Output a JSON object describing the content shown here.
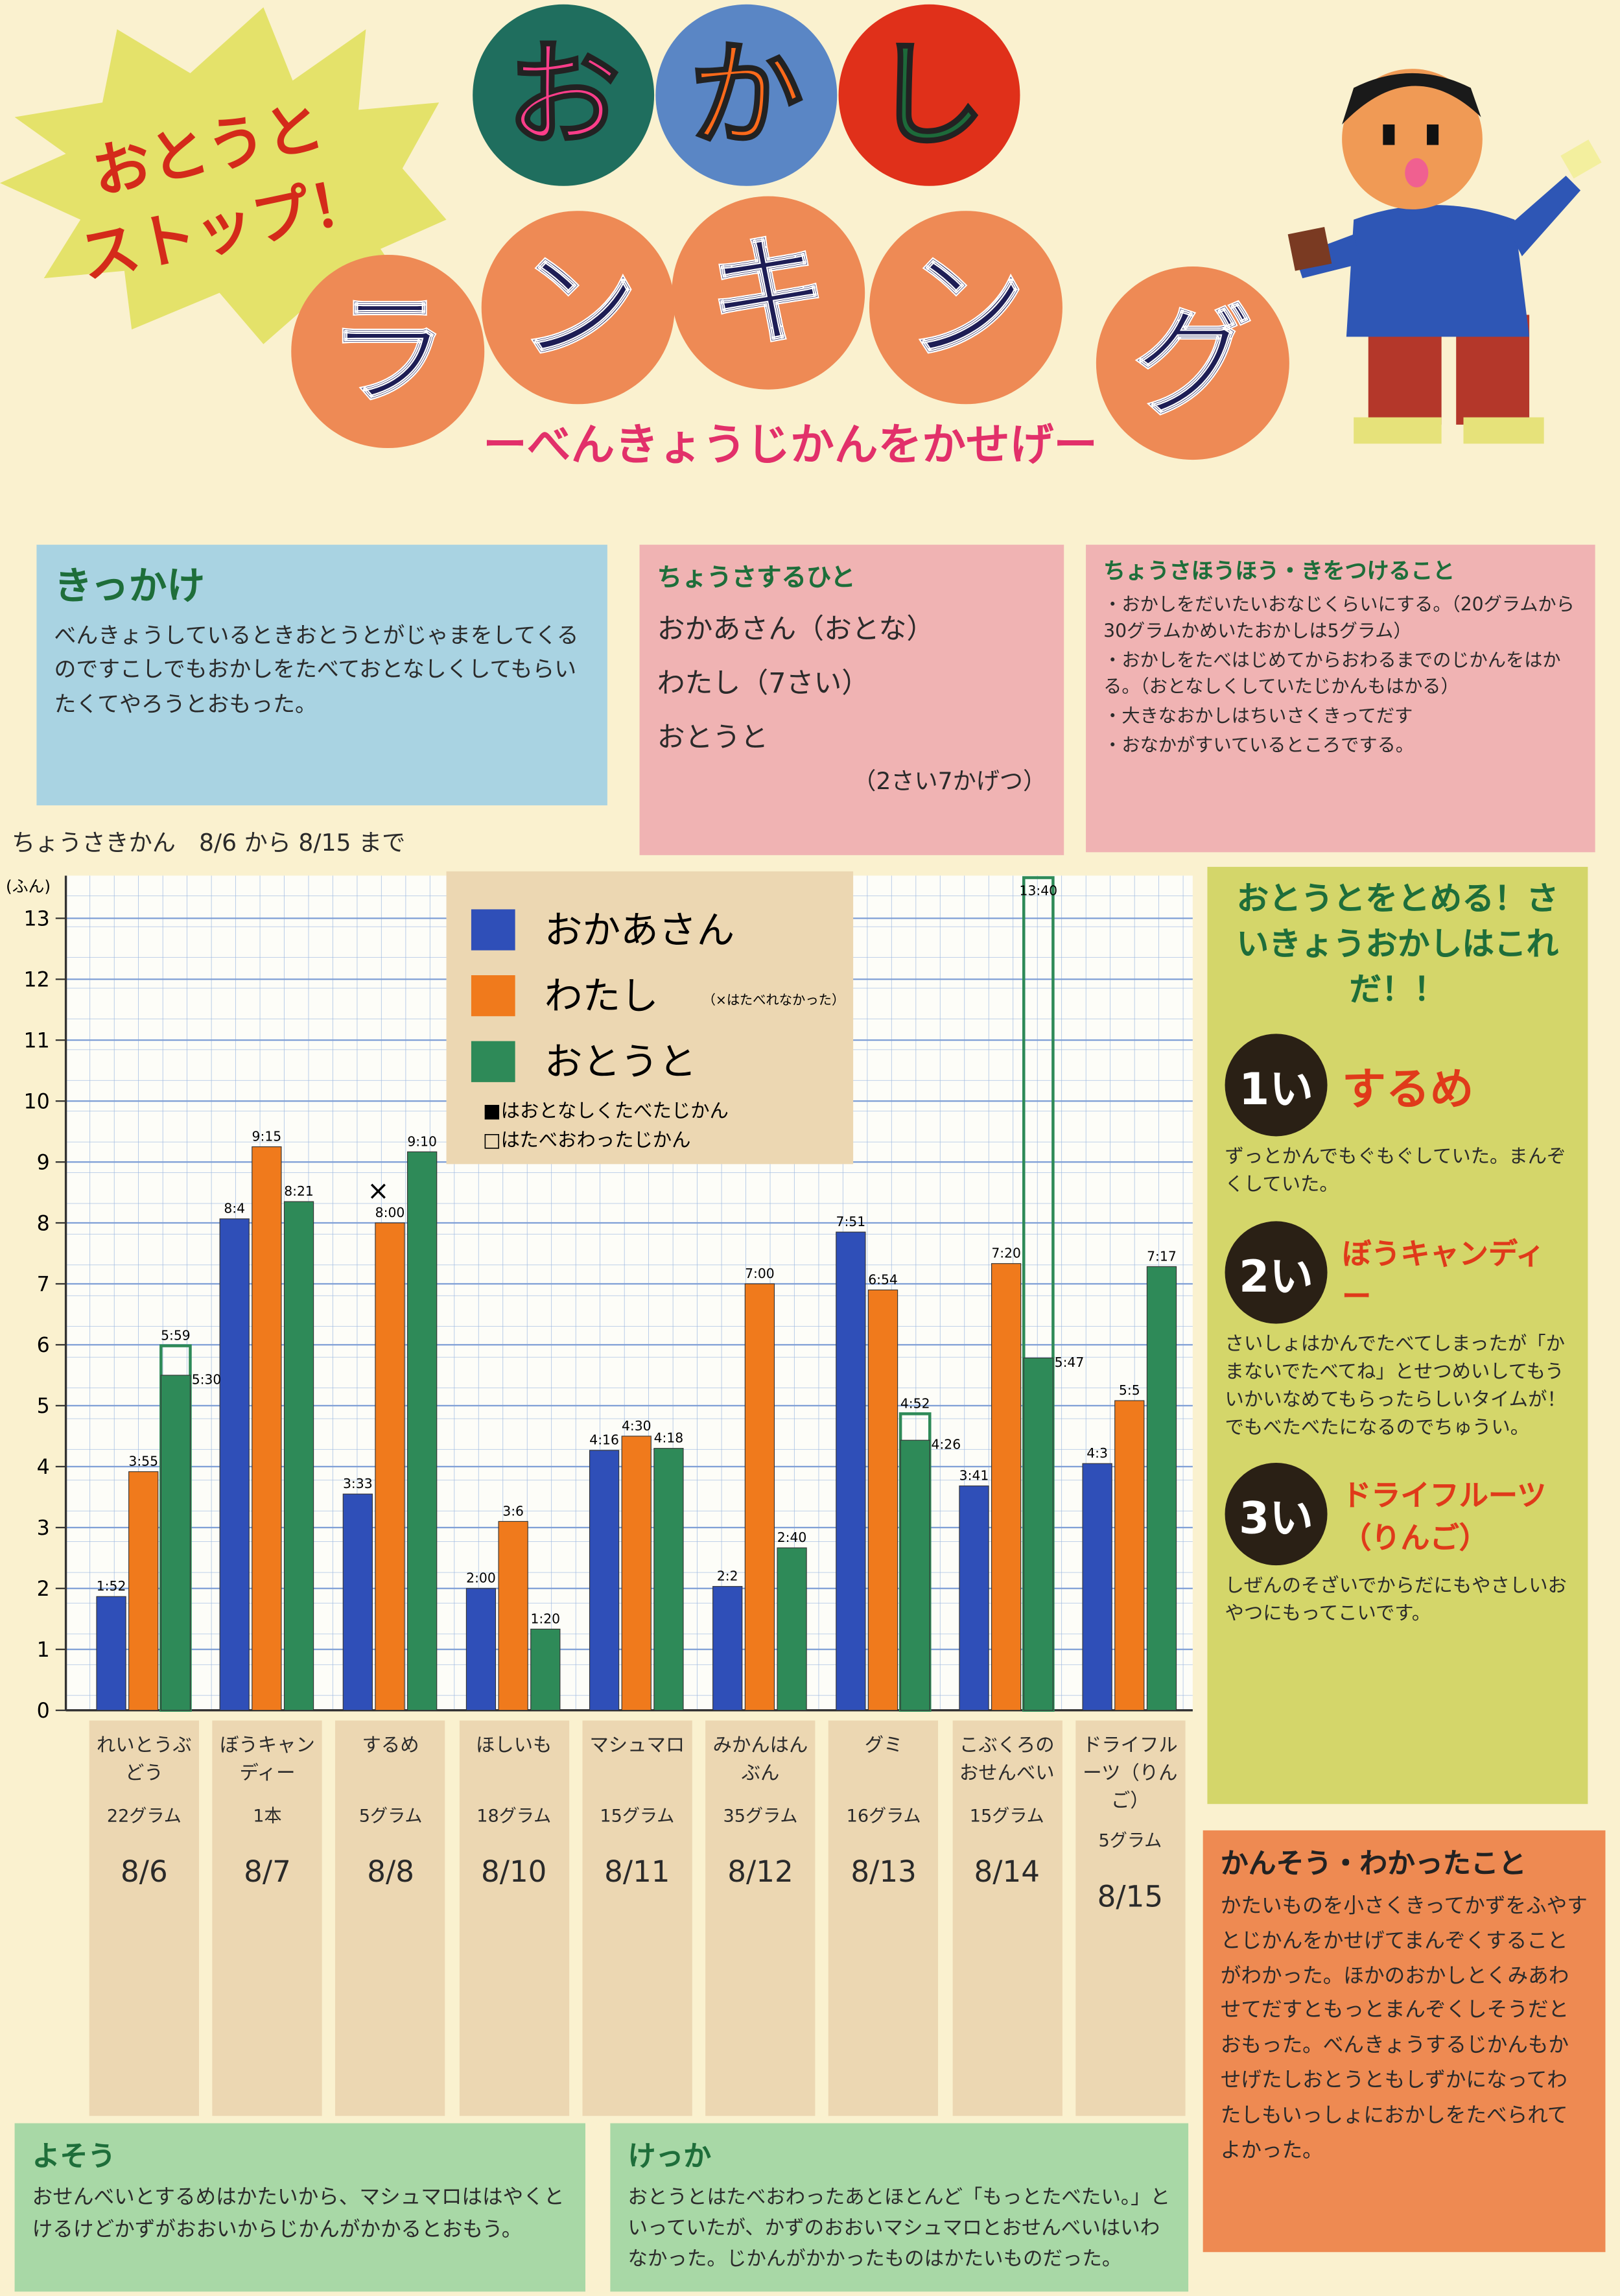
{
  "burst": [
    "おとうと",
    "ストップ！"
  ],
  "title_row1": [
    "お",
    "か",
    "し"
  ],
  "title_row2": [
    "ラ",
    "ン",
    "キ",
    "ン",
    "グ"
  ],
  "subtitle": "ーべんきょうじかんをかせげー",
  "reason": {
    "heading": "きっかけ",
    "body": "べんきょうしているときおとうとがじゃまをしてくるのですこしでもおかしをたべておとなしくしてもらいたくてやろうとおもった。"
  },
  "people": {
    "heading": "ちょうさするひと",
    "items": [
      "おかあさん（おとな）",
      "わたし（7さい）",
      "おとうと",
      "（2さい7かげつ）"
    ]
  },
  "method": {
    "heading": "ちょうさほうほう・きをつけること",
    "items": [
      "・おかしをだいたいおなじくらいにする。（20グラムから30グラムかめいたおかしは5グラム）",
      "・おかしをたべはじめてからおわるまでのじかんをはかる。（おとなしくしていたじかんもはかる）",
      "・大きなおかしはちいさくきってだす",
      "・おなかがすいているところでする。"
    ]
  },
  "period": "ちょうさきかん　8/6 から 8/15 まで",
  "chart_data": {
    "type": "bar",
    "y_label": "(ふん)",
    "categories": [
      "れいとうぶどう",
      "ぼうキャンディー",
      "するめ",
      "ほしいも",
      "マシュマロ",
      "みかんはんぶん",
      "グミ",
      "こぶくろのおせんべい",
      "ドライフルーツ（りんご）"
    ],
    "category_details": [
      {
        "amount": "22グラム",
        "date": "8/6"
      },
      {
        "amount": "1本",
        "date": "8/7"
      },
      {
        "amount": "5グラム",
        "date": "8/8"
      },
      {
        "amount": "18グラム",
        "date": "8/10"
      },
      {
        "amount": "15グラム",
        "date": "8/11"
      },
      {
        "amount": "35グラム",
        "date": "8/12"
      },
      {
        "amount": "16グラム",
        "date": "8/13"
      },
      {
        "amount": "15グラム",
        "date": "8/14"
      },
      {
        "amount": "5グラム",
        "date": "8/15"
      }
    ],
    "series": [
      {
        "name": "おかあさん",
        "color": "#2f4fb8",
        "values": [
          1.867,
          8.067,
          3.55,
          2,
          4.267,
          2.033,
          7.85,
          3.683,
          4.05
        ],
        "value_labels": [
          "1:52",
          "8:4",
          "3:33",
          "2:00",
          "4:16",
          "2:2",
          "7:51",
          "3:41",
          "4:3"
        ]
      },
      {
        "name": "わたし",
        "name_note": "（×はたべれなかった）",
        "color": "#f07a1c",
        "values": [
          3.917,
          9.25,
          8,
          3.1,
          4.5,
          7,
          6.9,
          7.333,
          5.083
        ],
        "value_labels": [
          "3:55",
          "9:15",
          "8:00",
          "3:6",
          "4:30",
          "7:00",
          "6:54",
          "7:20",
          "5:5"
        ],
        "markers": [
          null,
          null,
          "×",
          null,
          null,
          null,
          null,
          null,
          null
        ]
      },
      {
        "name": "おとうと",
        "color": "#2e8a58",
        "values": [
          5.5,
          8.35,
          9.167,
          1.333,
          4.3,
          2.667,
          4.433,
          5.783,
          7.283
        ],
        "value_labels": [
          "5:30",
          "8:21",
          "9:10",
          "1:20",
          "4:18",
          "2:40",
          "4:26",
          "5:47",
          "7:17"
        ],
        "finished_values": [
          5.983,
          null,
          null,
          null,
          null,
          null,
          4.867,
          13.667,
          null
        ],
        "finished_labels": [
          "5:59",
          null,
          null,
          null,
          null,
          null,
          "4:52",
          "13:40",
          null
        ]
      }
    ],
    "legend_notes": [
      "■はおとなしくたべたじかん",
      "□はたべおわったじかん"
    ],
    "ylim": [
      0,
      13.7
    ],
    "yticks": [
      0,
      1,
      2,
      3,
      4,
      5,
      6,
      7,
      8,
      9,
      10,
      11,
      12,
      13
    ],
    "grid": true
  },
  "ranking": {
    "heading": "おとうとをとめる！さいきょうおかしはこれだ！！",
    "items": [
      {
        "rank": "1い",
        "name": "するめ",
        "comment": "ずっとかんでもぐもぐしていた。まんぞくしていた。"
      },
      {
        "rank": "2い",
        "name": "ぼうキャンディー",
        "comment": "さいしょはかんでたべてしまったが「かまないでたべてね」とせつめいしてもういかいなめてもらったらしいタイムが！でもべたべたになるのでちゅうい。"
      },
      {
        "rank": "3い",
        "name": "ドライフルーツ（りんご）",
        "comment": "しぜんのそざいでからだにもやさしいおやつにもってこいです。"
      }
    ]
  },
  "impression": {
    "heading": "かんそう・わかったこと",
    "body": "かたいものを小さくきってかずをふやすとじかんをかせげてまんぞくすることがわかった。ほかのおかしとくみあわせてだすともっとまんぞくしそうだとおもった。べんきょうするじかんもかせげたしおとうともしずかになってわたしもいっしょにおかしをたべられてよかった。"
  },
  "prediction": {
    "heading": "よそう",
    "body": "おせんべいとするめはかたいから、マシュマロははやくとけるけどかずがおおいからじかんがかかるとおもう。"
  },
  "result": {
    "heading": "けっか",
    "body": "おとうとはたべおわったあとほとんど「もっとたべたい。」といっていたが、かずのおおいマシュマロとおせんべいはいわなかった。じかんがかかったものはかたいものだった。"
  }
}
